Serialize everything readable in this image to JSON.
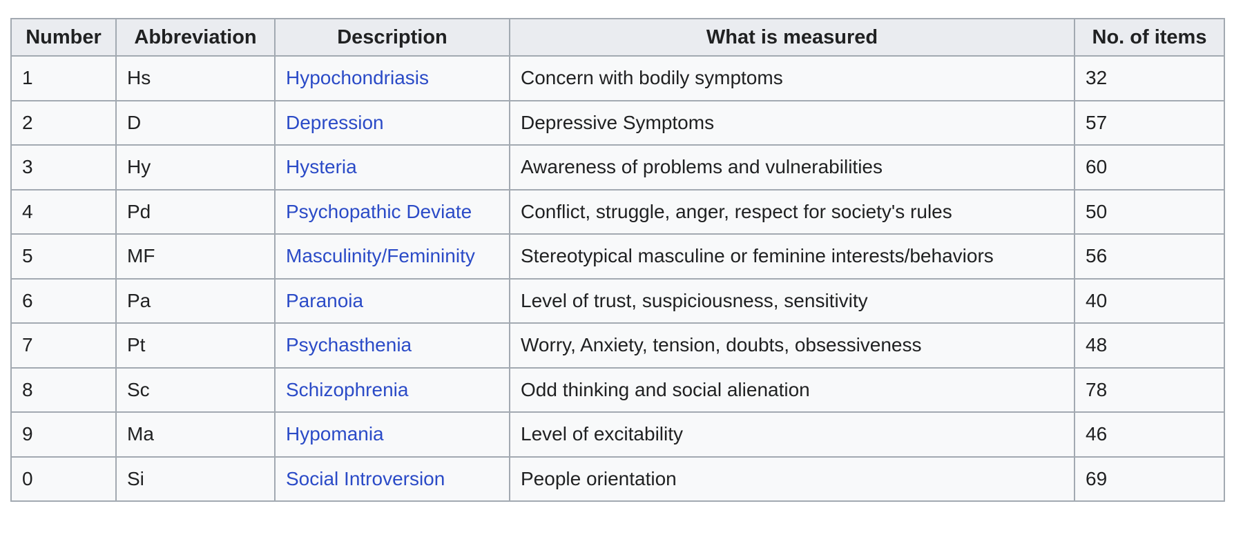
{
  "table": {
    "columns": [
      "Number",
      "Abbreviation",
      "Description",
      "What is measured",
      "No. of items"
    ],
    "rows": [
      {
        "number": "1",
        "abbr": "Hs",
        "description": "Hypochondriasis",
        "measured": "Concern with bodily symptoms",
        "items": "32"
      },
      {
        "number": "2",
        "abbr": "D",
        "description": "Depression",
        "measured": "Depressive Symptoms",
        "items": "57"
      },
      {
        "number": "3",
        "abbr": "Hy",
        "description": "Hysteria",
        "measured": "Awareness of problems and vulnerabilities",
        "items": "60"
      },
      {
        "number": "4",
        "abbr": "Pd",
        "description": "Psychopathic Deviate",
        "measured": "Conflict, struggle, anger, respect for society's rules",
        "items": "50"
      },
      {
        "number": "5",
        "abbr": "MF",
        "description": "Masculinity/Femininity",
        "measured": "Stereotypical masculine or feminine interests/behaviors",
        "items": "56"
      },
      {
        "number": "6",
        "abbr": "Pa",
        "description": "Paranoia",
        "measured": "Level of trust, suspiciousness, sensitivity",
        "items": "40"
      },
      {
        "number": "7",
        "abbr": "Pt",
        "description": "Psychasthenia",
        "measured": "Worry, Anxiety, tension, doubts, obsessiveness",
        "items": "48"
      },
      {
        "number": "8",
        "abbr": "Sc",
        "description": "Schizophrenia",
        "measured": "Odd thinking and social alienation",
        "items": "78"
      },
      {
        "number": "9",
        "abbr": "Ma",
        "description": "Hypomania",
        "measured": "Level of excitability",
        "items": "46"
      },
      {
        "number": "0",
        "abbr": "Si",
        "description": "Social Introversion",
        "measured": "People orientation",
        "items": "69"
      }
    ],
    "colors": {
      "header_bg": "#eaecf0",
      "row_bg": "#f8f9fa",
      "border": "#a2a9b1",
      "link": "#2b4bc7",
      "text": "#202122",
      "page_bg": "#ffffff"
    }
  }
}
